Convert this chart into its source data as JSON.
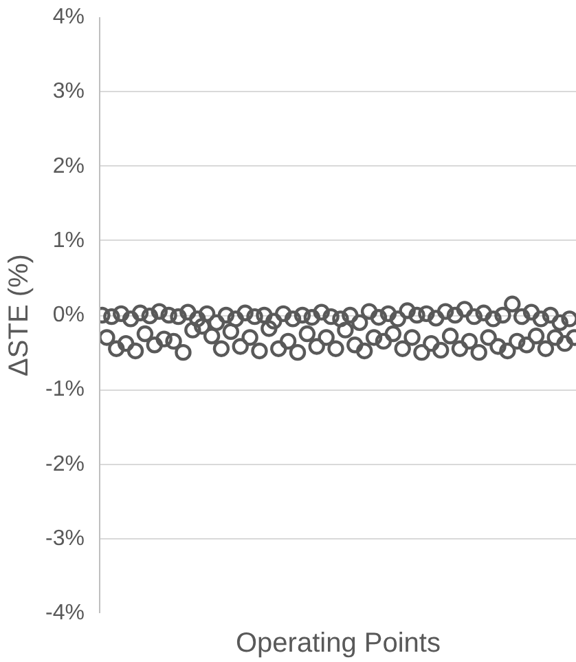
{
  "chart_data": {
    "type": "scatter",
    "xlabel": "Operating Points",
    "ylabel": "ΔSTE (%)",
    "categories": [
      null,
      null,
      null,
      null,
      null,
      null,
      null,
      null,
      null,
      null,
      null,
      null,
      null,
      null,
      null,
      null,
      null,
      null,
      null,
      null,
      null,
      null,
      null,
      null,
      null,
      null,
      null,
      null,
      null,
      null,
      null,
      null,
      null,
      null,
      null,
      null,
      null,
      null,
      null,
      null,
      null,
      null,
      null,
      null,
      null,
      null,
      null,
      null,
      null,
      null,
      null,
      null,
      null,
      null,
      null,
      null,
      null,
      null,
      null,
      null,
      null,
      null,
      null,
      null,
      null,
      null,
      null,
      null,
      null,
      null,
      null,
      null,
      null,
      null,
      null,
      null,
      null,
      null,
      null,
      null,
      null,
      null,
      null,
      null,
      null,
      null,
      null,
      null,
      null,
      null,
      null,
      null,
      null,
      null,
      null,
      null,
      null,
      null,
      null,
      null
    ],
    "series": [
      {
        "color": "#595959",
        "values": [
          0.0,
          -0.3,
          -0.02,
          -0.45,
          0.02,
          -0.38,
          -0.05,
          -0.48,
          0.03,
          -0.25,
          -0.01,
          -0.4,
          0.05,
          -0.32,
          0.0,
          -0.35,
          -0.02,
          -0.5,
          0.04,
          -0.2,
          -0.05,
          -0.15,
          0.02,
          -0.28,
          -0.1,
          -0.45,
          0.0,
          -0.22,
          -0.05,
          -0.42,
          0.03,
          -0.3,
          -0.02,
          -0.48,
          0.0,
          -0.18,
          -0.08,
          -0.45,
          0.02,
          -0.35,
          -0.05,
          -0.5,
          0.0,
          -0.25,
          -0.03,
          -0.42,
          0.04,
          -0.3,
          -0.02,
          -0.45,
          -0.05,
          -0.2,
          0.0,
          -0.4,
          -0.1,
          -0.48,
          0.05,
          -0.3,
          -0.03,
          -0.35,
          0.02,
          -0.25,
          -0.05,
          -0.45,
          0.06,
          -0.3,
          0.0,
          -0.5,
          0.02,
          -0.38,
          -0.04,
          -0.47,
          0.05,
          -0.28,
          0.0,
          -0.45,
          0.08,
          -0.35,
          -0.02,
          -0.5,
          0.03,
          -0.3,
          -0.05,
          -0.42,
          0.0,
          -0.48,
          0.15,
          -0.35,
          -0.02,
          -0.4,
          0.04,
          -0.28,
          -0.05,
          -0.45,
          0.0,
          -0.3,
          -0.1,
          -0.38,
          -0.05,
          -0.3
        ]
      }
    ],
    "ylim": [
      -4,
      4
    ],
    "yticks": [
      {
        "value": -4,
        "label": "-4%"
      },
      {
        "value": -3,
        "label": "-3%"
      },
      {
        "value": -2,
        "label": "-2%"
      },
      {
        "value": -1,
        "label": "-1%"
      },
      {
        "value": 0,
        "label": "0%"
      },
      {
        "value": 1,
        "label": "1%"
      },
      {
        "value": 2,
        "label": "2%"
      },
      {
        "value": 3,
        "label": "3%"
      },
      {
        "value": 4,
        "label": "4%"
      }
    ],
    "grid": "y",
    "marker": "circle",
    "tick_labels": "y"
  }
}
